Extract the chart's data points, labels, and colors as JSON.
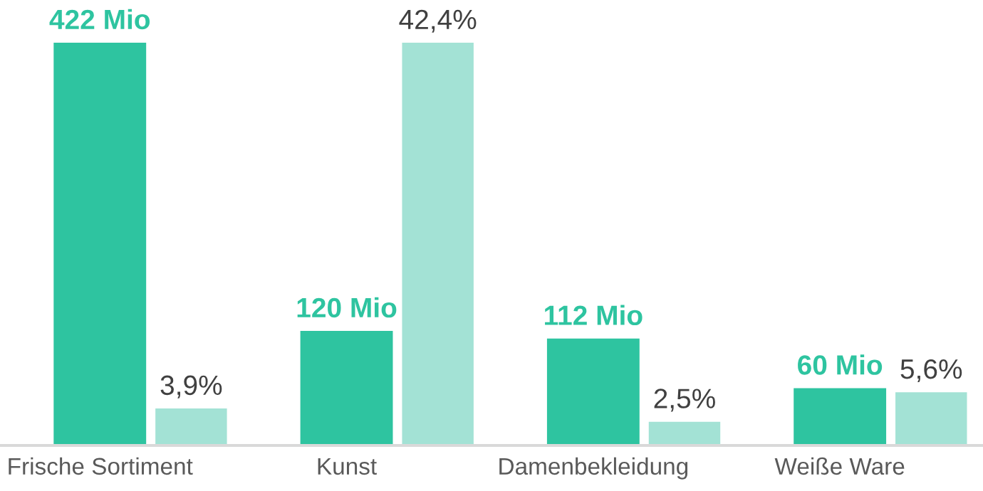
{
  "chart_data": {
    "type": "bar",
    "categories": [
      "Frische Sortiment",
      "Kunst",
      "Damenbekleidung",
      "Weiße Ware"
    ],
    "series": [
      {
        "color": "#2ec4a0",
        "values": [
          422,
          120,
          112,
          60
        ],
        "value_labels": [
          "422 Mio",
          "120 Mio",
          "112 Mio",
          "60 Mio"
        ]
      },
      {
        "color": "#a3e2d5",
        "values": [
          3.9,
          42.4,
          2.5,
          5.6
        ],
        "axis": "y2",
        "value_labels": [
          "3,9%",
          "42,4%",
          "2,5%",
          "5,6%"
        ]
      }
    ],
    "ylim": [
      0,
      422
    ],
    "y2lim": [
      0,
      42.4
    ],
    "tick_labels": "x",
    "grid": false,
    "legend": false
  }
}
